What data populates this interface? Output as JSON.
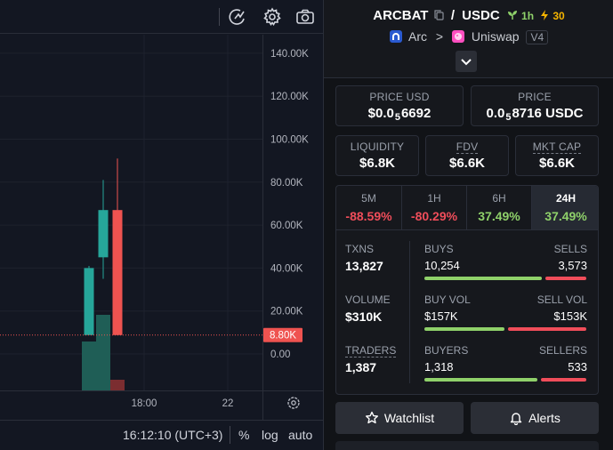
{
  "chart": {
    "y_ticks": [
      "140.00K",
      "120.00K",
      "100.00K",
      "80.00K",
      "60.00K",
      "40.00K",
      "20.00K",
      "0.00"
    ],
    "x_ticks": [
      "18:00",
      "22"
    ],
    "price_tag": "8.80K",
    "colors": {
      "up": "#26a69a",
      "down": "#ef5350",
      "volume_up": "#1f5e56",
      "volume_down": "#7b2d30"
    },
    "candles": [
      {
        "open": 8800,
        "high": 41000,
        "low": 8800,
        "close": 40000,
        "dir": "up"
      },
      {
        "open": 45000,
        "high": 81000,
        "low": 35000,
        "close": 67000,
        "dir": "up"
      },
      {
        "open": 67000,
        "high": 91000,
        "low": 8800,
        "close": 8800,
        "dir": "down"
      }
    ],
    "volumes": [
      {
        "value": 55,
        "dir": "up"
      },
      {
        "value": 85,
        "dir": "up"
      },
      {
        "value": 12,
        "dir": "down"
      }
    ],
    "footer": {
      "time": "16:12:10 (UTC+3)",
      "percent": "%",
      "log": "log",
      "auto": "auto"
    },
    "toolbar_icons": [
      "indicators-icon",
      "settings-icon",
      "camera-icon"
    ]
  },
  "pair": {
    "base": "ARCBAT",
    "quote": "USDC",
    "separator": "/",
    "age": "1h",
    "boost": "30",
    "chain": "Arc",
    "dex": "Uniswap",
    "version": "V4",
    "chevron": ">"
  },
  "prices": {
    "usd_label": "PRICE USD",
    "usd_prefix": "$0.0",
    "usd_sub": "5",
    "usd_rest": "6692",
    "native_label": "PRICE",
    "native_prefix": "0.0",
    "native_sub": "5",
    "native_rest": "8716 USDC"
  },
  "metrics": [
    {
      "label": "LIQUIDITY",
      "value": "$6.8K"
    },
    {
      "label": "FDV",
      "value": "$6.6K"
    },
    {
      "label": "MKT CAP",
      "value": "$6.6K"
    }
  ],
  "timeframes": [
    {
      "label": "5M",
      "value": "-88.59%",
      "sign": "neg"
    },
    {
      "label": "1H",
      "value": "-80.29%",
      "sign": "neg"
    },
    {
      "label": "6H",
      "value": "37.49%",
      "sign": "pos"
    },
    {
      "label": "24H",
      "value": "37.49%",
      "sign": "pos"
    }
  ],
  "stats": {
    "txns_label": "TXNS",
    "txns": "13,827",
    "buys_label": "BUYS",
    "buys": "10,254",
    "sells_label": "SELLS",
    "sells": "3,573",
    "volume_label": "VOLUME",
    "volume": "$310K",
    "buy_vol_label": "BUY VOL",
    "buy_vol": "$157K",
    "sell_vol_label": "SELL VOL",
    "sell_vol": "$153K",
    "traders_label": "TRADERS",
    "traders": "1,387",
    "buyers_label": "BUYERS",
    "buyers": "1,318",
    "sellers_label": "SELLERS",
    "sellers": "533",
    "buys_fraction": 0.742,
    "buy_vol_fraction": 0.506,
    "buyers_fraction": 0.712
  },
  "actions": {
    "watchlist": "Watchlist",
    "alerts": "Alerts"
  }
}
